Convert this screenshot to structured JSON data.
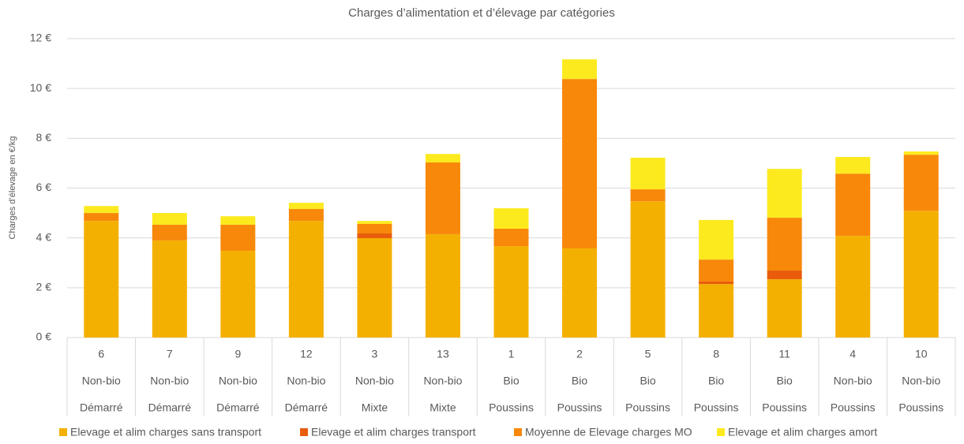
{
  "chart_data": {
    "type": "stacked_bar",
    "title": "Charges d’alimentation et d’élevage par catégories",
    "y_label": "Charges d’élevage en €/kg",
    "categories": [
      "6",
      "7",
      "9",
      "12",
      "3",
      "13",
      "1",
      "2",
      "5",
      "8",
      "11",
      "4",
      "10"
    ],
    "categories_level2": [
      "Non-bio",
      "Non-bio",
      "Non-bio",
      "Non-bio",
      "Non-bio",
      "Non-bio",
      "Bio",
      "Bio",
      "Bio",
      "Bio",
      "Bio",
      "Non-bio",
      "Non-bio"
    ],
    "categories_level3": [
      "Démarré",
      "Démarré",
      "Démarré",
      "Démarré",
      "Mixte",
      "Mixte",
      "Poussins",
      "Poussins",
      "Poussins",
      "Poussins",
      "Poussins",
      "Poussins",
      "Poussins"
    ],
    "series": [
      {
        "name": "Elevage et alim charges sans transport",
        "color": "#f4b000",
        "values": [
          4.68,
          3.9,
          3.48,
          4.68,
          3.99,
          4.15,
          3.67,
          3.58,
          5.47,
          2.15,
          2.34,
          4.08,
          5.09
        ]
      },
      {
        "name": "Elevage et alim charges transport",
        "color": "#e85c0c",
        "values": [
          0,
          0,
          0,
          0,
          0.19,
          0,
          0,
          0,
          0,
          0.1,
          0.35,
          0,
          0
        ]
      },
      {
        "name": "Moyenne de Elevage charges MO",
        "color": "#f7880a",
        "values": [
          0.32,
          0.63,
          1.05,
          0.48,
          0.38,
          2.88,
          0.7,
          6.8,
          0.48,
          0.88,
          2.12,
          2.5,
          2.25
        ]
      },
      {
        "name": "Elevage et alim charges amort",
        "color": "#fcea1e",
        "values": [
          0.28,
          0.47,
          0.34,
          0.25,
          0.12,
          0.34,
          0.82,
          0.79,
          1.27,
          1.59,
          1.96,
          0.67,
          0.13
        ]
      }
    ],
    "ylim": [
      0,
      12
    ],
    "yticks": [
      {
        "value": 0,
        "label": "0 €"
      },
      {
        "value": 2,
        "label": "2 €"
      },
      {
        "value": 4,
        "label": "4 €"
      },
      {
        "value": 6,
        "label": "6 €"
      },
      {
        "value": 8,
        "label": "8 €"
      },
      {
        "value": 10,
        "label": "10 €"
      },
      {
        "value": 12,
        "label": "12 €"
      }
    ],
    "grid": true
  }
}
